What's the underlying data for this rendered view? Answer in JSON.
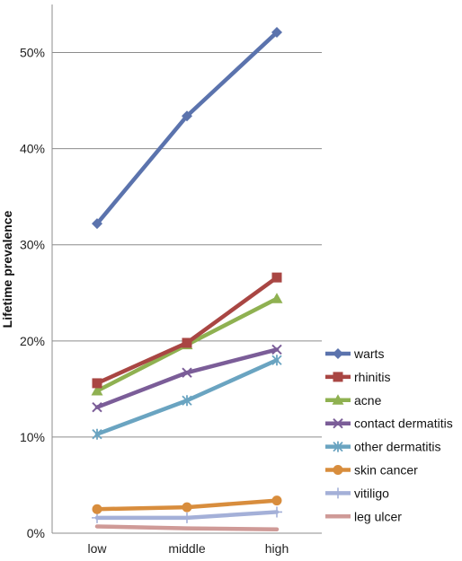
{
  "chart_data": {
    "type": "line",
    "title": "",
    "xlabel": "",
    "ylabel": "Lifetime prevalence",
    "categories": [
      "low",
      "middle",
      "high"
    ],
    "ylim": [
      0,
      55
    ],
    "yticks": [
      0,
      10,
      20,
      30,
      40,
      50
    ],
    "ytick_labels": [
      "0%",
      "10%",
      "20%",
      "30%",
      "40%",
      "50%"
    ],
    "grid": true,
    "legend_position": "right",
    "series": [
      {
        "name": "warts",
        "values": [
          32.2,
          43.4,
          52.1
        ],
        "color": "#5b73ad",
        "marker": "diamond"
      },
      {
        "name": "rhinitis",
        "values": [
          15.6,
          19.8,
          26.6
        ],
        "color": "#a94643",
        "marker": "square"
      },
      {
        "name": "acne",
        "values": [
          14.8,
          19.6,
          24.4
        ],
        "color": "#8fb151",
        "marker": "triangle"
      },
      {
        "name": "contact dermatitis",
        "values": [
          13.1,
          16.7,
          19.1
        ],
        "color": "#7b5d98",
        "marker": "x"
      },
      {
        "name": "other dermatitis",
        "values": [
          10.3,
          13.8,
          18.0
        ],
        "color": "#6aa4c1",
        "marker": "star"
      },
      {
        "name": "skin cancer",
        "values": [
          2.5,
          2.7,
          3.4
        ],
        "color": "#d88d3d",
        "marker": "circle"
      },
      {
        "name": "vitiligo",
        "values": [
          1.6,
          1.6,
          2.2
        ],
        "color": "#a4b0d8",
        "marker": "plus"
      },
      {
        "name": "leg ulcer",
        "values": [
          0.7,
          0.5,
          0.4
        ],
        "color": "#cf9a97",
        "marker": "none"
      }
    ]
  }
}
